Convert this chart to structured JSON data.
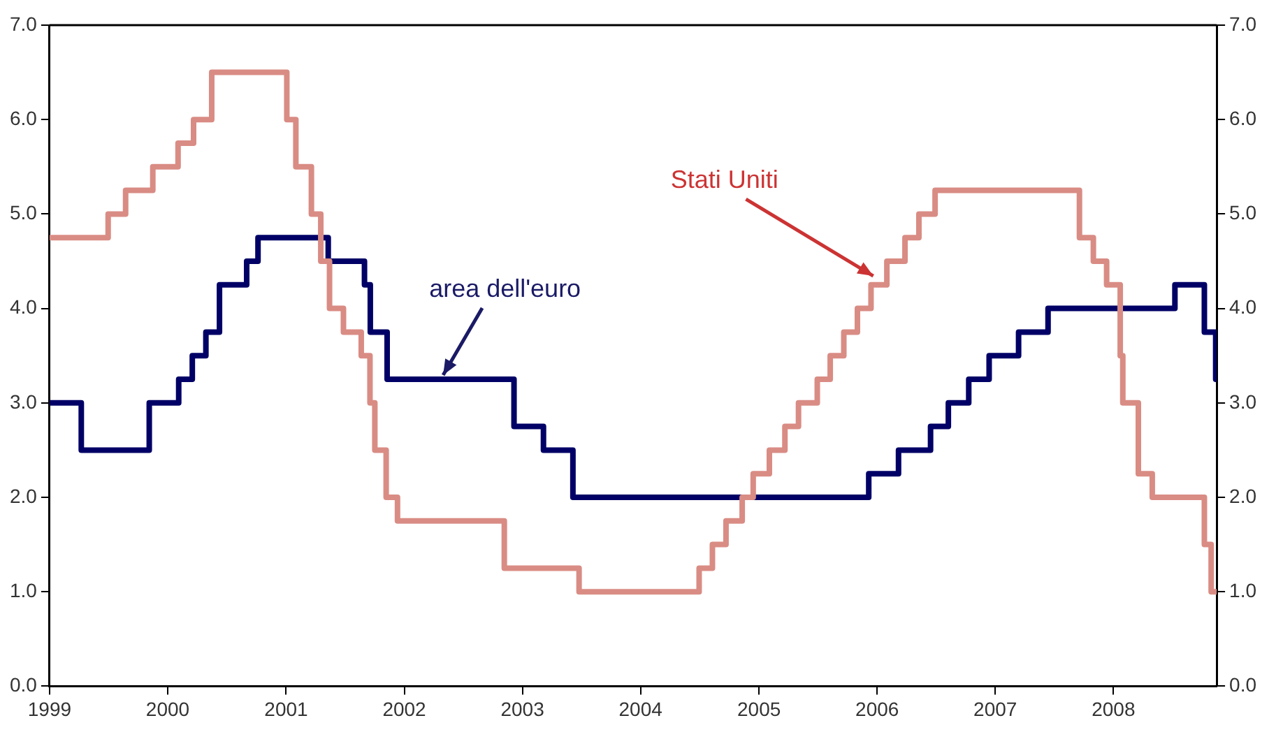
{
  "chart_data": {
    "type": "step",
    "legend": false,
    "grid": false,
    "xlim": [
      "1999-01-01",
      "2008-11-15"
    ],
    "xticks": [
      {
        "value": "1999-01-01",
        "label": "1999"
      },
      {
        "value": "2000-01-01",
        "label": "2000"
      },
      {
        "value": "2001-01-01",
        "label": "2001"
      },
      {
        "value": "2002-01-01",
        "label": "2002"
      },
      {
        "value": "2003-01-01",
        "label": "2003"
      },
      {
        "value": "2004-01-01",
        "label": "2004"
      },
      {
        "value": "2005-01-01",
        "label": "2005"
      },
      {
        "value": "2006-01-01",
        "label": "2006"
      },
      {
        "value": "2007-01-01",
        "label": "2007"
      },
      {
        "value": "2008-01-01",
        "label": "2008"
      }
    ],
    "ylim": [
      0,
      7
    ],
    "yticks": [
      {
        "value": 0,
        "label": "0.0"
      },
      {
        "value": 1,
        "label": "1.0"
      },
      {
        "value": 2,
        "label": "2.0"
      },
      {
        "value": 3,
        "label": "3.0"
      },
      {
        "value": 4,
        "label": "4.0"
      },
      {
        "value": 5,
        "label": "5.0"
      },
      {
        "value": 6,
        "label": "6.0"
      },
      {
        "value": 7,
        "label": "7.0"
      }
    ],
    "y2lim": [
      0,
      7
    ],
    "y2ticks": [
      {
        "value": 0,
        "label": "0.0"
      },
      {
        "value": 1,
        "label": "1.0"
      },
      {
        "value": 2,
        "label": "2.0"
      },
      {
        "value": 3,
        "label": "3.0"
      },
      {
        "value": 4,
        "label": "4.0"
      },
      {
        "value": 5,
        "label": "5.0"
      },
      {
        "value": 6,
        "label": "6.0"
      },
      {
        "value": 7,
        "label": "7.0"
      }
    ],
    "series": [
      {
        "color": "#d98c84",
        "x": [
          "1999-01-01",
          "1999-07-01",
          "1999-08-24",
          "1999-11-16",
          "2000-02-02",
          "2000-03-21",
          "2000-05-16",
          "2001-01-03",
          "2001-01-31",
          "2001-03-20",
          "2001-04-18",
          "2001-05-15",
          "2001-06-27",
          "2001-08-21",
          "2001-09-17",
          "2001-10-02",
          "2001-11-06",
          "2001-12-11",
          "2002-11-06",
          "2003-06-25",
          "2004-06-30",
          "2004-08-10",
          "2004-09-21",
          "2004-11-10",
          "2004-12-14",
          "2005-02-02",
          "2005-03-22",
          "2005-05-03",
          "2005-06-30",
          "2005-08-09",
          "2005-09-20",
          "2005-11-01",
          "2005-12-13",
          "2006-01-31",
          "2006-03-28",
          "2006-05-10",
          "2006-06-29",
          "2007-09-18",
          "2007-10-31",
          "2007-12-11",
          "2008-01-22",
          "2008-01-30",
          "2008-03-18",
          "2008-04-30",
          "2008-10-08",
          "2008-10-29",
          "2008-11-15"
        ],
        "values": [
          4.75,
          5.0,
          5.25,
          5.5,
          5.75,
          6.0,
          6.5,
          6.0,
          5.5,
          5.0,
          4.5,
          4.0,
          3.75,
          3.5,
          3.0,
          2.5,
          2.0,
          1.75,
          1.25,
          1.0,
          1.25,
          1.5,
          1.75,
          2.0,
          2.25,
          2.5,
          2.75,
          3.0,
          3.25,
          3.5,
          3.75,
          4.0,
          4.25,
          4.5,
          4.75,
          5.0,
          5.25,
          4.75,
          4.5,
          4.25,
          3.5,
          3.0,
          2.25,
          2.0,
          1.5,
          1.0,
          1.0
        ]
      },
      {
        "color": "#000066",
        "x": [
          "1999-01-01",
          "1999-04-09",
          "1999-11-05",
          "2000-02-04",
          "2000-03-17",
          "2000-04-28",
          "2000-06-09",
          "2000-09-01",
          "2000-10-06",
          "2001-05-11",
          "2001-08-31",
          "2001-09-18",
          "2001-11-09",
          "2002-12-06",
          "2003-03-07",
          "2003-06-06",
          "2005-12-06",
          "2006-03-08",
          "2006-06-15",
          "2006-08-09",
          "2006-10-11",
          "2006-12-13",
          "2007-03-14",
          "2007-06-13",
          "2008-07-09",
          "2008-10-08",
          "2008-11-12",
          "2008-11-15"
        ],
        "values": [
          3.0,
          2.5,
          3.0,
          3.25,
          3.5,
          3.75,
          4.25,
          4.5,
          4.75,
          4.5,
          4.25,
          3.75,
          3.25,
          2.75,
          2.5,
          2.0,
          2.25,
          2.5,
          2.75,
          3.0,
          3.25,
          3.5,
          3.75,
          4.0,
          4.25,
          3.75,
          3.25,
          3.25
        ]
      }
    ],
    "annotations": [
      {
        "text": "area dell'euro",
        "x": "2002-05-01",
        "y": 3.25
      },
      {
        "text": "Stati Uniti",
        "x": "2005-12-20",
        "y": 4.3
      }
    ]
  }
}
